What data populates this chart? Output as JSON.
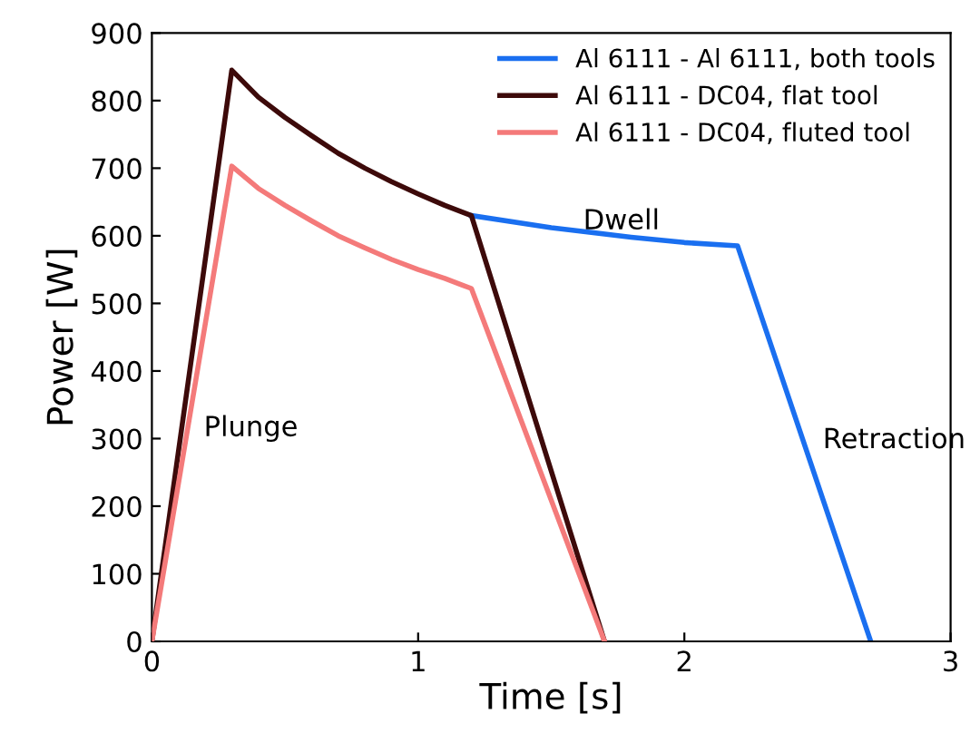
{
  "chart_data": {
    "type": "line",
    "xlabel": "Time [s]",
    "ylabel": "Power [W]",
    "xlim": [
      0,
      3
    ],
    "ylim": [
      0,
      900
    ],
    "xticks": [
      0,
      1,
      2,
      3
    ],
    "yticks": [
      0,
      100,
      200,
      300,
      400,
      500,
      600,
      700,
      800,
      900
    ],
    "grid": false,
    "legend": "top right",
    "marker": "none",
    "line_style": "solid",
    "series": [
      {
        "name": "Al 6111 - Al 6111, both tools",
        "color": "#1a6ff0",
        "x": [
          1.2,
          1.5,
          1.8,
          2.0,
          2.2,
          2.7
        ],
        "values": [
          630,
          612,
          598,
          590,
          585,
          0
        ]
      },
      {
        "name": "Al 6111 - DC04, flat tool",
        "color": "#3d0a0a",
        "x": [
          0,
          0.3,
          0.4,
          0.5,
          0.6,
          0.7,
          0.8,
          0.9,
          1.0,
          1.1,
          1.2,
          1.7
        ],
        "values": [
          0,
          845,
          805,
          775,
          748,
          722,
          700,
          680,
          662,
          645,
          630,
          0
        ]
      },
      {
        "name": "Al 6111 - DC04, fluted tool",
        "color": "#f47a7a",
        "x": [
          0,
          0.3,
          0.4,
          0.5,
          0.6,
          0.7,
          0.8,
          0.9,
          1.0,
          1.1,
          1.2,
          1.7
        ],
        "values": [
          0,
          703,
          670,
          645,
          622,
          600,
          582,
          565,
          550,
          537,
          522,
          0
        ]
      }
    ],
    "annotations": [
      "Plunge",
      "Dwell",
      "Retraction"
    ]
  }
}
